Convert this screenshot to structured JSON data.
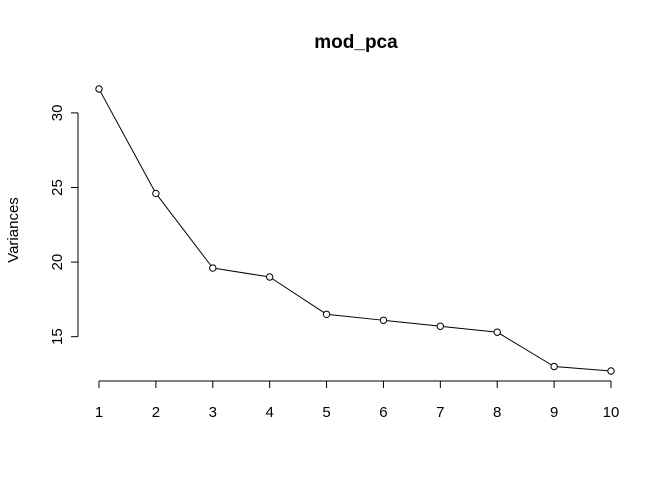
{
  "chart_data": {
    "type": "line",
    "title": "mod_pca",
    "xlabel": "",
    "ylabel": "Variances",
    "x": [
      1,
      2,
      3,
      4,
      5,
      6,
      7,
      8,
      9,
      10
    ],
    "y": [
      31.6,
      24.6,
      19.6,
      19.0,
      16.5,
      16.1,
      15.7,
      15.3,
      13.0,
      12.7
    ],
    "xticks": [
      "1",
      "2",
      "3",
      "4",
      "5",
      "6",
      "7",
      "8",
      "9",
      "10"
    ],
    "yticks": [
      "15",
      "20",
      "25",
      "30"
    ],
    "ylim": [
      12.7,
      31.6
    ],
    "markers": "open-circle",
    "grid": false,
    "line_color": "#000000"
  }
}
